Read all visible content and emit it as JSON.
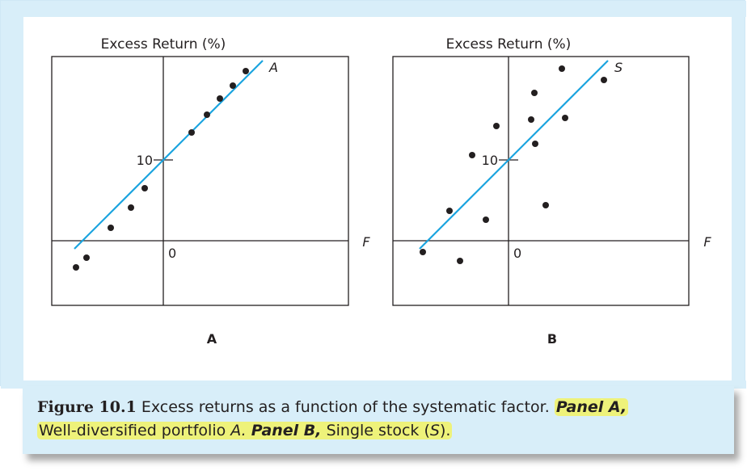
{
  "caption": {
    "figure_number": "Figure 10.1",
    "text": "Excess returns as a function of the systematic factor.",
    "panel_a_label": "Panel A,",
    "panel_a_desc": "Well-diversified portfolio",
    "panel_a_symbol": "A.",
    "panel_b_label": "Panel B,",
    "panel_b_desc": "Single stock (",
    "panel_b_symbol": "S",
    "panel_b_close": ")."
  },
  "colors": {
    "line": "#1ba4df",
    "frame_bg": "#d8eef9",
    "highlight": "#eef27a",
    "dot": "#231f20"
  },
  "chart_data": [
    {
      "type": "scatter",
      "panel_label": "A",
      "ylabel": "Excess Return (%)",
      "xlabel": "F",
      "x_tick_labels": [
        "0"
      ],
      "y_tick_labels": [
        "10"
      ],
      "line_label": "A",
      "xlim": [
        -11,
        19
      ],
      "ylim": [
        -7,
        20
      ],
      "grid": false,
      "line": {
        "intercept": 10,
        "slope": 1.0
      },
      "points": [
        {
          "x": -10.8,
          "y": -3.3
        },
        {
          "x": -9.5,
          "y": -2.1
        },
        {
          "x": -6.5,
          "y": 1.6
        },
        {
          "x": -4.0,
          "y": 4.1
        },
        {
          "x": -2.3,
          "y": 6.5
        },
        {
          "x": 3.5,
          "y": 13.4
        },
        {
          "x": 5.4,
          "y": 15.6
        },
        {
          "x": 7.0,
          "y": 17.6
        },
        {
          "x": 8.6,
          "y": 19.2
        },
        {
          "x": 10.2,
          "y": 21.0
        }
      ]
    },
    {
      "type": "scatter",
      "panel_label": "B",
      "ylabel": "Excess Return (%)",
      "xlabel": "F",
      "x_tick_labels": [
        "0"
      ],
      "y_tick_labels": [
        "10"
      ],
      "line_label": "S",
      "xlim": [
        -11,
        19
      ],
      "ylim": [
        -7,
        20
      ],
      "grid": false,
      "line": {
        "intercept": 10,
        "slope": 1.0
      },
      "points": [
        {
          "x": -10.6,
          "y": -1.4
        },
        {
          "x": -7.3,
          "y": 3.7
        },
        {
          "x": -6.0,
          "y": -2.5
        },
        {
          "x": -4.5,
          "y": 10.6
        },
        {
          "x": -2.8,
          "y": 2.6
        },
        {
          "x": -1.5,
          "y": 14.2
        },
        {
          "x": 2.8,
          "y": 15.0
        },
        {
          "x": 3.2,
          "y": 18.3
        },
        {
          "x": 3.3,
          "y": 12.0
        },
        {
          "x": 4.6,
          "y": 4.4
        },
        {
          "x": 6.6,
          "y": 21.3
        },
        {
          "x": 7.0,
          "y": 15.2
        },
        {
          "x": 11.8,
          "y": 19.9
        }
      ]
    }
  ]
}
